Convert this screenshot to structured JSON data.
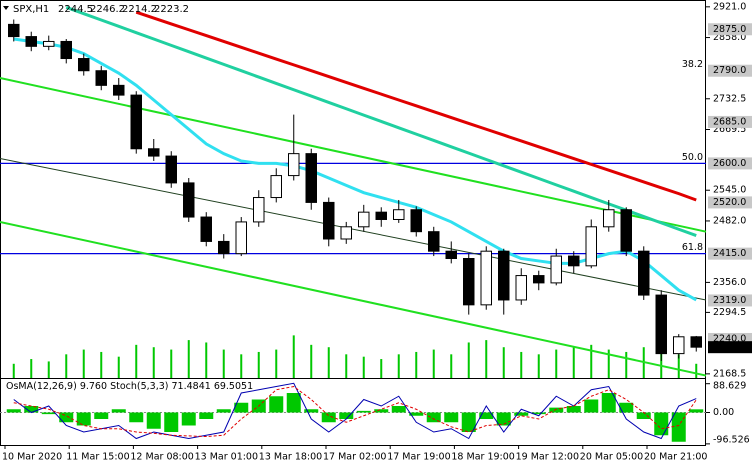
{
  "chart_data": {
    "type": "candlestick",
    "title": "SPX,H1",
    "candles": [
      [
        2885,
        2895,
        2850,
        2860
      ],
      [
        2860,
        2870,
        2830,
        2840
      ],
      [
        2840,
        2862,
        2832,
        2850
      ],
      [
        2850,
        2855,
        2805,
        2815
      ],
      [
        2815,
        2825,
        2780,
        2790
      ],
      [
        2790,
        2800,
        2750,
        2760
      ],
      [
        2760,
        2775,
        2730,
        2740
      ],
      [
        2740,
        2748,
        2620,
        2630
      ],
      [
        2630,
        2650,
        2605,
        2615
      ],
      [
        2615,
        2625,
        2550,
        2560
      ],
      [
        2560,
        2570,
        2480,
        2490
      ],
      [
        2490,
        2500,
        2430,
        2440
      ],
      [
        2440,
        2455,
        2405,
        2415
      ],
      [
        2415,
        2490,
        2410,
        2480
      ],
      [
        2480,
        2545,
        2470,
        2530
      ],
      [
        2530,
        2590,
        2520,
        2575
      ],
      [
        2575,
        2700,
        2565,
        2620
      ],
      [
        2620,
        2630,
        2505,
        2520
      ],
      [
        2520,
        2530,
        2430,
        2445
      ],
      [
        2445,
        2480,
        2435,
        2470
      ],
      [
        2470,
        2515,
        2460,
        2500
      ],
      [
        2500,
        2510,
        2470,
        2485
      ],
      [
        2485,
        2525,
        2478,
        2505
      ],
      [
        2505,
        2512,
        2450,
        2460
      ],
      [
        2460,
        2470,
        2410,
        2420
      ],
      [
        2420,
        2440,
        2395,
        2405
      ],
      [
        2405,
        2415,
        2290,
        2310
      ],
      [
        2310,
        2430,
        2300,
        2420
      ],
      [
        2420,
        2425,
        2290,
        2320
      ],
      [
        2320,
        2385,
        2310,
        2370
      ],
      [
        2370,
        2380,
        2340,
        2355
      ],
      [
        2355,
        2425,
        2350,
        2410
      ],
      [
        2410,
        2420,
        2375,
        2390
      ],
      [
        2390,
        2485,
        2385,
        2470
      ],
      [
        2470,
        2525,
        2460,
        2505
      ],
      [
        2505,
        2510,
        2410,
        2420
      ],
      [
        2420,
        2430,
        2320,
        2330
      ],
      [
        2330,
        2340,
        2195,
        2210
      ],
      [
        2210,
        2250,
        2200,
        2244.5
      ],
      [
        2244.5,
        2246.2,
        2214.2,
        2223.2
      ]
    ],
    "moving_averages": [
      {
        "color": "#e00000",
        "values": [
          null,
          null,
          null,
          null,
          null,
          null,
          null,
          2910,
          2898,
          2886,
          2874,
          2862,
          2850,
          2838,
          2826,
          2814,
          2802,
          2790,
          2778,
          2766,
          2754,
          2742,
          2730,
          2718,
          2706,
          2694,
          2682,
          2670,
          2658,
          2646,
          2634,
          2622,
          2610,
          2598,
          2586,
          2574,
          2562,
          2550,
          2538,
          2525
        ]
      },
      {
        "color": "#20d0a0",
        "values": [
          null,
          null,
          null,
          2920,
          2907,
          2894,
          2881,
          2868,
          2855,
          2842,
          2829,
          2816,
          2803,
          2790,
          2777,
          2764,
          2751,
          2738,
          2725,
          2712,
          2699,
          2686,
          2673,
          2660,
          2647,
          2634,
          2621,
          2608,
          2595,
          2582,
          2569,
          2556,
          2543,
          2530,
          2517,
          2504,
          2491,
          2478,
          2465,
          2452
        ]
      },
      {
        "color": "#30e0f0",
        "values": [
          2855,
          2850,
          2845,
          2838,
          2825,
          2805,
          2785,
          2760,
          2730,
          2700,
          2670,
          2640,
          2620,
          2605,
          2600,
          2600,
          2595,
          2585,
          2570,
          2555,
          2540,
          2530,
          2520,
          2510,
          2495,
          2480,
          2460,
          2440,
          2420,
          2405,
          2400,
          2395,
          2395,
          2405,
          2415,
          2420,
          2400,
          2370,
          2340,
          2320
        ]
      }
    ],
    "trendlines": [
      {
        "color": "#20e020",
        "width": 2,
        "values": [
          2775,
          2460
        ]
      },
      {
        "color": "#20e020",
        "width": 2,
        "values": [
          2480,
          2165
        ]
      },
      {
        "color": "#204020",
        "width": 1,
        "values": [
          2610,
          2320
        ]
      }
    ],
    "fib_levels": [
      {
        "price": 2790,
        "ratio": "38.2",
        "line": false
      },
      {
        "price": 2600,
        "ratio": "50.0",
        "line": true
      },
      {
        "price": 2415,
        "ratio": "61.8",
        "line": true
      }
    ],
    "ylim": [
      2160,
      2935
    ],
    "yticks": [
      {
        "value": 2921,
        "label": "2921.0"
      },
      {
        "value": 2858,
        "label": "2858.0"
      },
      {
        "value": 2732.5,
        "label": "2732.5"
      },
      {
        "value": 2669.5,
        "label": "2669.5"
      },
      {
        "value": 2545,
        "label": "2545.0"
      },
      {
        "value": 2482,
        "label": "2482.0"
      },
      {
        "value": 2356,
        "label": "2356.0"
      },
      {
        "value": 2294.5,
        "label": "2294.5"
      },
      {
        "value": 2168.5,
        "label": "2168.5"
      }
    ],
    "price_marks": [
      {
        "value": 2875,
        "label": "2875.0"
      },
      {
        "value": 2790,
        "label": "2790.0"
      },
      {
        "value": 2685,
        "label": "2685.0"
      },
      {
        "value": 2600,
        "label": "2600.0"
      },
      {
        "value": 2520,
        "label": "2520.0"
      },
      {
        "value": 2415,
        "label": "2415.0"
      },
      {
        "value": 2319,
        "label": "2319.0"
      },
      {
        "value": 2240,
        "label": "2240.0"
      }
    ],
    "volume_color": "#00c800",
    "volume": [
      3000,
      4000,
      3500,
      5000,
      6000,
      5500,
      4500,
      7000,
      6500,
      6000,
      8000,
      7500,
      6000,
      5000,
      5500,
      6000,
      9000,
      7000,
      6500,
      5000,
      4500,
      4000,
      5000,
      5500,
      6000,
      5000,
      7500,
      8000,
      6500,
      5500,
      5000,
      6000,
      6500,
      7000,
      6000,
      5500,
      6500,
      9500,
      5000,
      3000
    ],
    "indicator_name": "OsMA(12,26,9)",
    "osma_last_label": "9.760",
    "stoch_name": "Stoch(5,3,3)",
    "osma": [
      10,
      20,
      -5,
      -30,
      -40,
      -20,
      10,
      -30,
      -50,
      -60,
      -40,
      -20,
      10,
      30,
      40,
      50,
      60,
      10,
      -30,
      -20,
      5,
      10,
      20,
      -10,
      -30,
      -30,
      -60,
      -20,
      -40,
      -10,
      -5,
      15,
      20,
      40,
      60,
      30,
      -20,
      -70,
      -90,
      9.76
    ],
    "stoch_main": [
      70,
      50,
      60,
      30,
      20,
      25,
      30,
      10,
      20,
      15,
      10,
      15,
      20,
      80,
      85,
      90,
      95,
      40,
      20,
      40,
      70,
      60,
      75,
      35,
      20,
      25,
      10,
      60,
      20,
      55,
      45,
      75,
      60,
      85,
      90,
      40,
      20,
      10,
      60,
      71.4841
    ],
    "stoch_signal": [
      65,
      60,
      55,
      45,
      30,
      25,
      25,
      20,
      18,
      15,
      14,
      13,
      15,
      40,
      60,
      85,
      90,
      70,
      45,
      35,
      45,
      55,
      65,
      55,
      40,
      28,
      20,
      30,
      32,
      45,
      40,
      55,
      60,
      75,
      85,
      70,
      50,
      25,
      30,
      69.5051
    ],
    "osc_ylim": [
      -100,
      100
    ],
    "osc_yticks": [
      88.629,
      {
        "value": 0,
        "label": "0.00"
      },
      -96.526
    ],
    "stoch_ylim": [
      0,
      100
    ],
    "x_labels": [
      "10 Mar 2020",
      "11 Mar 15:00",
      "12 Mar 08:00",
      "13 Mar 01:00",
      "13 Mar 18:00",
      "17 Mar 02:00",
      "17 Mar 19:00",
      "18 Mar 19:00",
      "19 Mar 12:00",
      "20 Mar 05:00",
      "20 Mar 21:00"
    ]
  }
}
